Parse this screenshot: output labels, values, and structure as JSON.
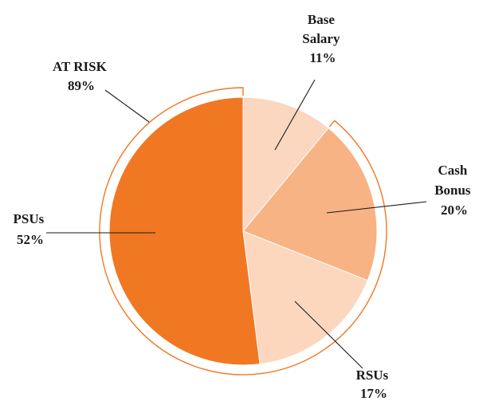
{
  "chart_data": {
    "type": "pie",
    "slices": [
      {
        "label_lines": [
          "Base",
          "Salary"
        ],
        "value": 11,
        "value_label": "11%",
        "color": "#fbd7bf"
      },
      {
        "label_lines": [
          "Cash",
          "Bonus"
        ],
        "value": 20,
        "value_label": "20%",
        "color": "#f7b384"
      },
      {
        "label_lines": [
          "RSUs"
        ],
        "value": 17,
        "value_label": "17%",
        "color": "#fcd6bd"
      },
      {
        "label_lines": [
          "PSUs"
        ],
        "value": 52,
        "value_label": "52%",
        "color": "#f07822"
      }
    ],
    "at_risk": {
      "label": "AT RISK",
      "value": 89,
      "value_label": "89%",
      "color": "#f07822"
    }
  }
}
